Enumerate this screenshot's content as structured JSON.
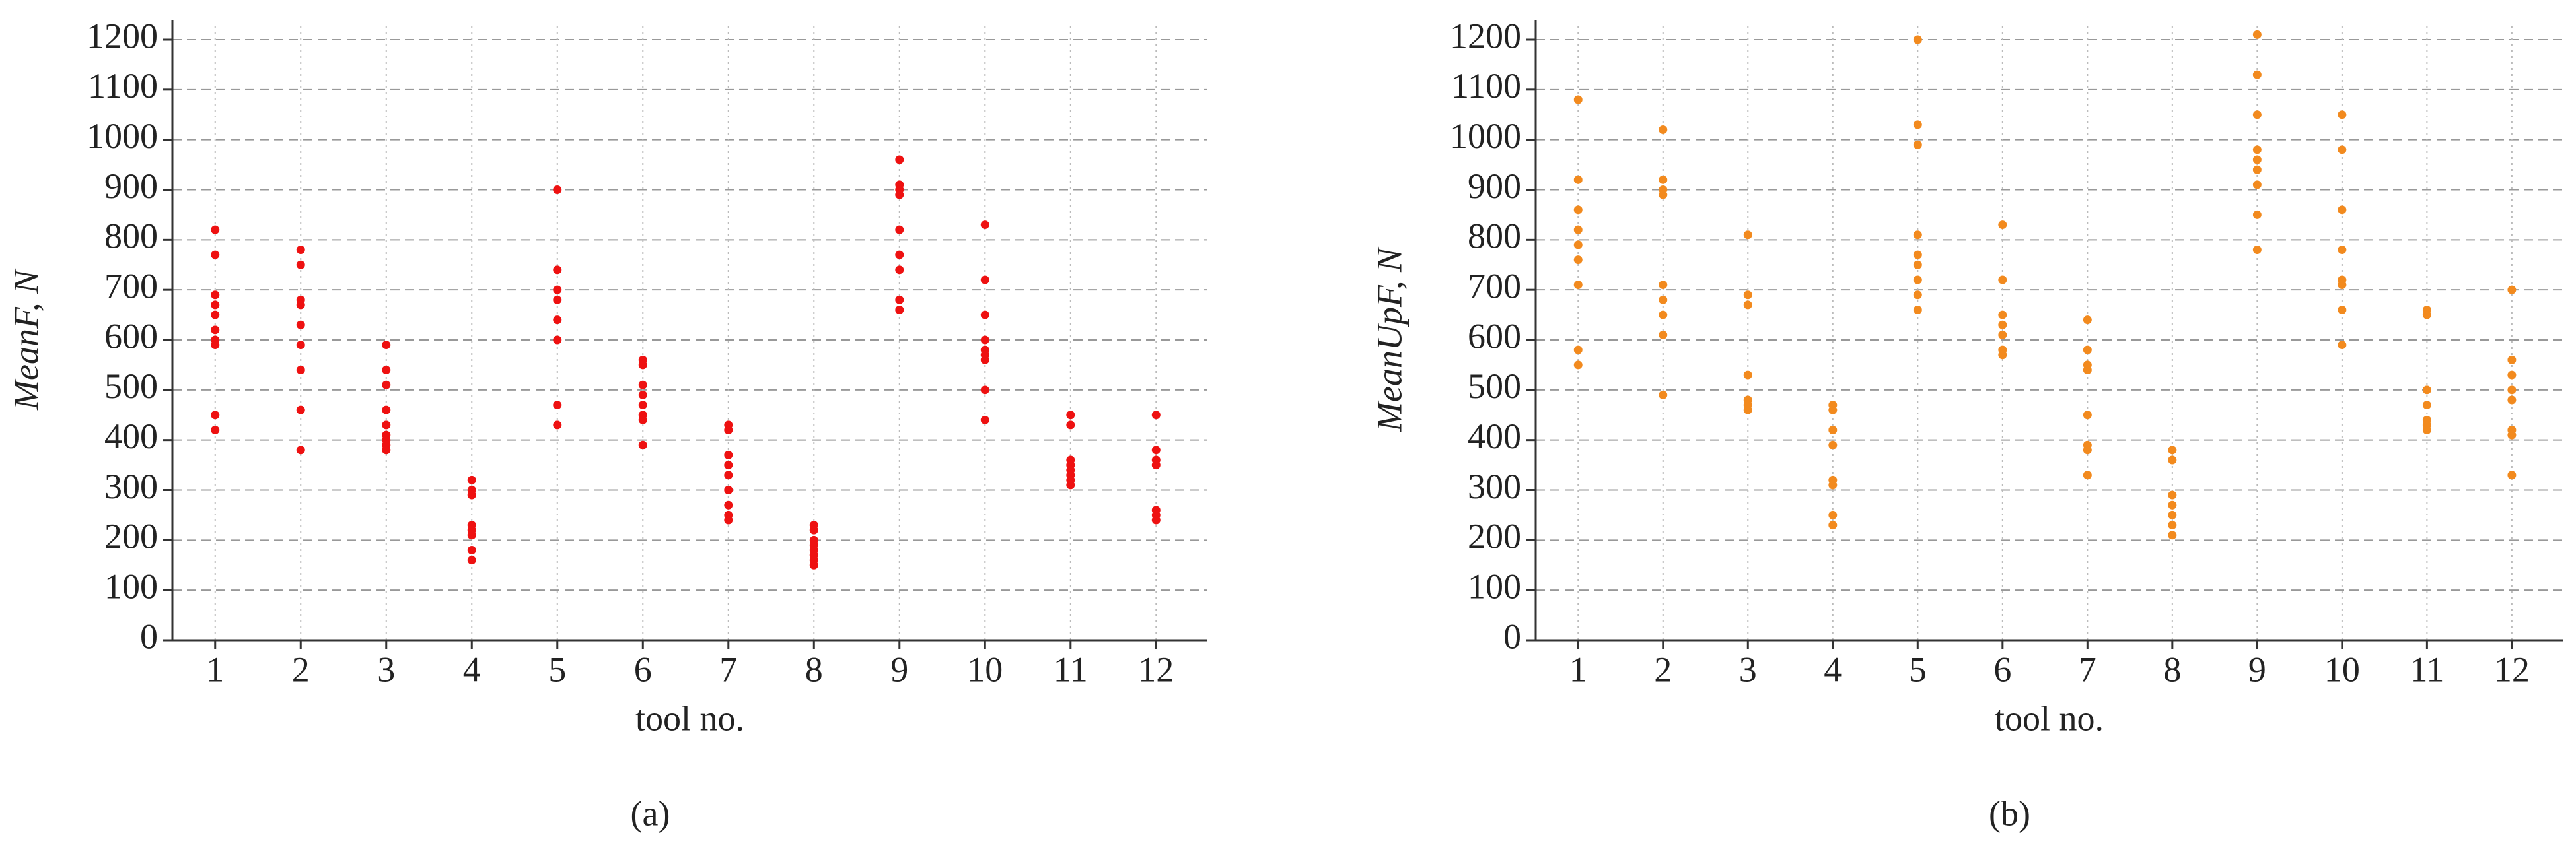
{
  "chart_data": [
    {
      "type": "scatter",
      "ylabel": "MeanF, N",
      "xlabel": "tool no.",
      "caption": "(a)",
      "color": "#ee1111",
      "x": [
        1,
        1,
        1,
        1,
        1,
        1,
        1,
        1,
        1,
        1,
        2,
        2,
        2,
        2,
        2,
        2,
        2,
        2,
        2,
        3,
        3,
        3,
        3,
        3,
        3,
        3,
        3,
        3,
        4,
        4,
        4,
        4,
        4,
        4,
        4,
        4,
        5,
        5,
        5,
        5,
        5,
        5,
        5,
        5,
        6,
        6,
        6,
        6,
        6,
        6,
        6,
        6,
        7,
        7,
        7,
        7,
        7,
        7,
        7,
        7,
        7,
        8,
        8,
        8,
        8,
        8,
        8,
        8,
        8,
        9,
        9,
        9,
        9,
        9,
        9,
        9,
        9,
        9,
        10,
        10,
        10,
        10,
        10,
        10,
        10,
        10,
        10,
        11,
        11,
        11,
        11,
        11,
        11,
        11,
        11,
        12,
        12,
        12,
        12,
        12,
        12,
        12
      ],
      "values": [
        820,
        770,
        690,
        670,
        650,
        620,
        600,
        590,
        450,
        420,
        780,
        750,
        680,
        670,
        630,
        590,
        540,
        460,
        380,
        590,
        540,
        510,
        460,
        430,
        410,
        400,
        390,
        380,
        320,
        300,
        290,
        230,
        220,
        210,
        180,
        160,
        900,
        740,
        700,
        680,
        640,
        600,
        470,
        430,
        560,
        550,
        510,
        490,
        470,
        450,
        440,
        390,
        430,
        420,
        370,
        350,
        330,
        300,
        270,
        250,
        240,
        230,
        220,
        200,
        190,
        180,
        170,
        160,
        150,
        960,
        910,
        900,
        890,
        820,
        770,
        740,
        680,
        660,
        830,
        720,
        650,
        600,
        580,
        570,
        560,
        500,
        440,
        450,
        430,
        360,
        350,
        340,
        330,
        320,
        310,
        450,
        380,
        360,
        350,
        260,
        250,
        240
      ],
      "xlim": [
        0.5,
        12.6
      ],
      "xticks": [
        1,
        2,
        3,
        4,
        5,
        6,
        7,
        8,
        9,
        10,
        11,
        12
      ],
      "ylim": [
        0,
        1200
      ],
      "yticks": [
        0,
        100,
        200,
        300,
        400,
        500,
        600,
        700,
        800,
        900,
        1000,
        1100,
        1200
      ],
      "grid": true
    },
    {
      "type": "scatter",
      "ylabel": "MeanUpF, N",
      "xlabel": "tool no.",
      "caption": "(b)",
      "color": "#f28a1e",
      "x": [
        1,
        1,
        1,
        1,
        1,
        1,
        1,
        1,
        1,
        2,
        2,
        2,
        2,
        2,
        2,
        2,
        2,
        2,
        3,
        3,
        3,
        3,
        3,
        3,
        3,
        4,
        4,
        4,
        4,
        4,
        4,
        4,
        4,
        5,
        5,
        5,
        5,
        5,
        5,
        5,
        5,
        5,
        6,
        6,
        6,
        6,
        6,
        6,
        6,
        7,
        7,
        7,
        7,
        7,
        7,
        7,
        7,
        8,
        8,
        8,
        8,
        8,
        8,
        8,
        9,
        9,
        9,
        9,
        9,
        9,
        9,
        9,
        9,
        10,
        10,
        10,
        10,
        10,
        10,
        10,
        10,
        11,
        11,
        11,
        11,
        11,
        11,
        11,
        12,
        12,
        12,
        12,
        12,
        12,
        12,
        12
      ],
      "values": [
        1080,
        920,
        860,
        820,
        790,
        760,
        710,
        580,
        550,
        1020,
        920,
        900,
        890,
        710,
        680,
        650,
        610,
        490,
        810,
        690,
        670,
        530,
        480,
        470,
        460,
        470,
        460,
        420,
        390,
        320,
        310,
        250,
        230,
        1200,
        1030,
        990,
        810,
        770,
        750,
        720,
        690,
        660,
        830,
        720,
        650,
        630,
        610,
        580,
        570,
        640,
        580,
        550,
        540,
        450,
        390,
        380,
        330,
        380,
        360,
        290,
        270,
        250,
        230,
        210,
        1210,
        1130,
        1050,
        980,
        960,
        940,
        910,
        850,
        780,
        1050,
        980,
        860,
        780,
        720,
        710,
        660,
        590,
        660,
        650,
        500,
        470,
        440,
        430,
        420,
        700,
        560,
        530,
        500,
        480,
        420,
        410,
        330
      ],
      "xlim": [
        0.5,
        12.6
      ],
      "xticks": [
        1,
        2,
        3,
        4,
        5,
        6,
        7,
        8,
        9,
        10,
        11,
        12
      ],
      "ylim": [
        0,
        1200
      ],
      "yticks": [
        0,
        100,
        200,
        300,
        400,
        500,
        600,
        700,
        800,
        900,
        1000,
        1100,
        1200
      ],
      "grid": true
    }
  ]
}
